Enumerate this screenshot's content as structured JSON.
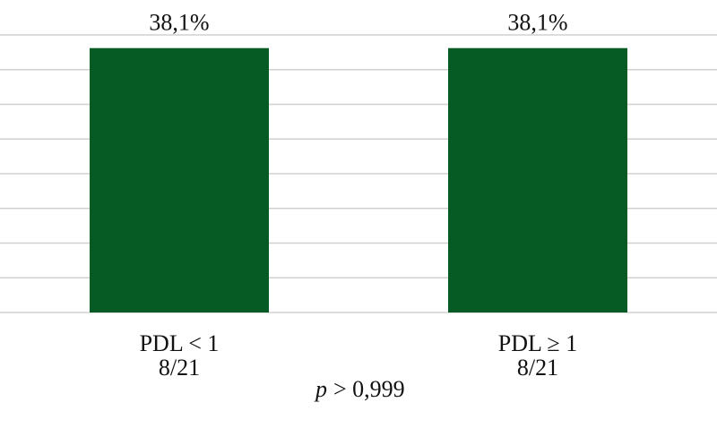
{
  "chart_data": {
    "type": "bar",
    "categories": [
      "PDL < 1",
      "PDL ≥ 1"
    ],
    "counts": [
      "8/21",
      "8/21"
    ],
    "values": [
      38.1,
      38.1
    ],
    "value_labels": [
      "38,1%",
      "38,1%"
    ],
    "color": "#065a23",
    "ylim": [
      0,
      40
    ],
    "yticks": [
      0,
      5,
      10,
      15,
      20,
      25,
      30,
      35,
      40
    ],
    "grid": true,
    "annotation": {
      "variable": "p",
      "text": "> 0,999"
    }
  }
}
